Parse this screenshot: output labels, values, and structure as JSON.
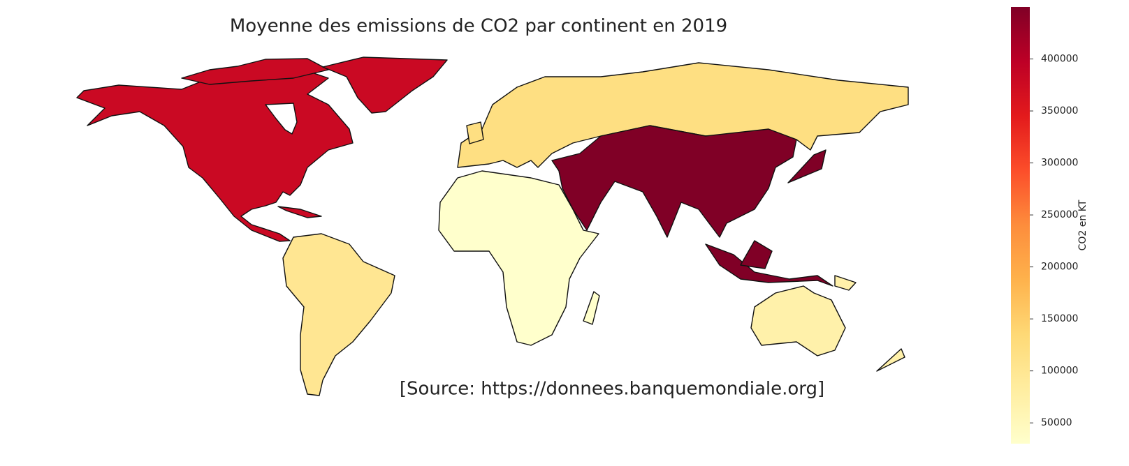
{
  "chart_data": {
    "type": "choropleth",
    "title": "Moyenne des emissions de CO2 par continent en 2019",
    "annotation": "[Source: https://donnees.banquemondiale.org]",
    "colorbar_label": "CO2 en KT",
    "colormap": "YlOrRd",
    "values": [
      380000,
      100000,
      120000,
      450000,
      30000,
      70000
    ],
    "clim": [
      30000,
      450000
    ],
    "cticks": [
      50000,
      100000,
      150000,
      200000,
      250000,
      300000,
      350000,
      400000
    ]
  }
}
